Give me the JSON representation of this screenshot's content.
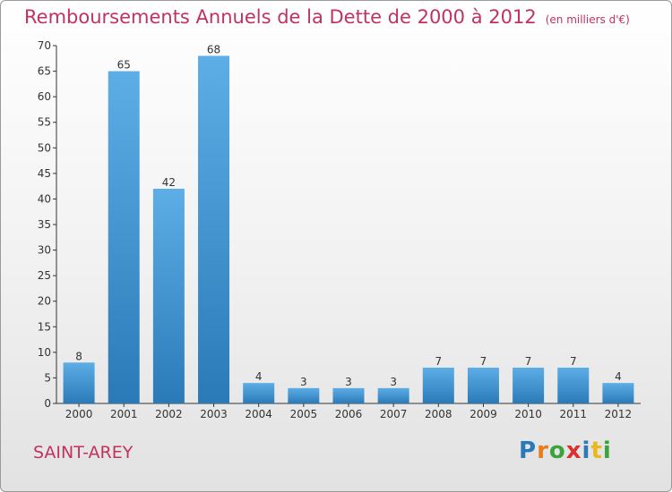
{
  "header": {
    "title": "Remboursements Annuels de la Dette de 2000 à 2012",
    "unit": "(en milliers d'€)"
  },
  "footer": {
    "commune": "SAINT-AREY",
    "logo": "Proxiti"
  },
  "colors": {
    "title": "#c1325f",
    "bar_top": "#5daee6",
    "bar_bottom": "#2a7ab8",
    "axis": "#333333"
  },
  "chart_data": {
    "type": "bar",
    "title": "Remboursements Annuels de la Dette de 2000 à 2012",
    "subtitle": "(en milliers d'€)",
    "xlabel": "",
    "ylabel": "",
    "categories": [
      "2000",
      "2001",
      "2002",
      "2003",
      "2004",
      "2005",
      "2006",
      "2007",
      "2008",
      "2009",
      "2010",
      "2011",
      "2012"
    ],
    "values": [
      8,
      65,
      42,
      68,
      4,
      3,
      3,
      3,
      7,
      7,
      7,
      7,
      4
    ],
    "ylim": [
      0,
      70
    ],
    "yticks": [
      0,
      5,
      10,
      15,
      20,
      25,
      30,
      35,
      40,
      45,
      50,
      55,
      60,
      65,
      70
    ],
    "grid": false,
    "data_labels": true
  }
}
